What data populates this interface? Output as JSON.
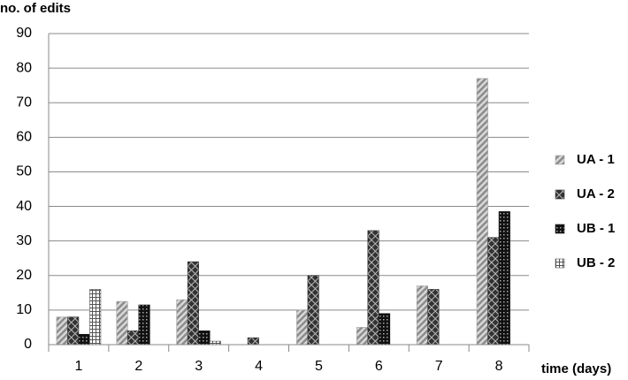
{
  "chart_data": {
    "type": "bar",
    "y_label": "no. of edits",
    "x_label": "time (days)",
    "categories": [
      "1",
      "2",
      "3",
      "4",
      "5",
      "6",
      "7",
      "8"
    ],
    "series": [
      {
        "name": "UA - 1",
        "color": "#a0a0a0",
        "values": [
          8,
          12.5,
          13,
          0,
          10,
          5,
          17,
          77
        ]
      },
      {
        "name": "UA - 2",
        "color": "#333333",
        "values": [
          8,
          4,
          24,
          2,
          20,
          33,
          16,
          31
        ]
      },
      {
        "name": "UB - 1",
        "color": "#111111",
        "values": [
          3,
          11.5,
          4,
          0,
          0,
          9,
          0,
          38.5
        ]
      },
      {
        "name": "UB - 2",
        "color": "#555555",
        "values": [
          16,
          0,
          1,
          0,
          0,
          0,
          0,
          0
        ]
      }
    ],
    "ylim": [
      0,
      90
    ],
    "yticks": [
      0,
      10,
      20,
      30,
      40,
      50,
      60,
      70,
      80,
      90
    ],
    "grid": true,
    "legend": "right"
  }
}
